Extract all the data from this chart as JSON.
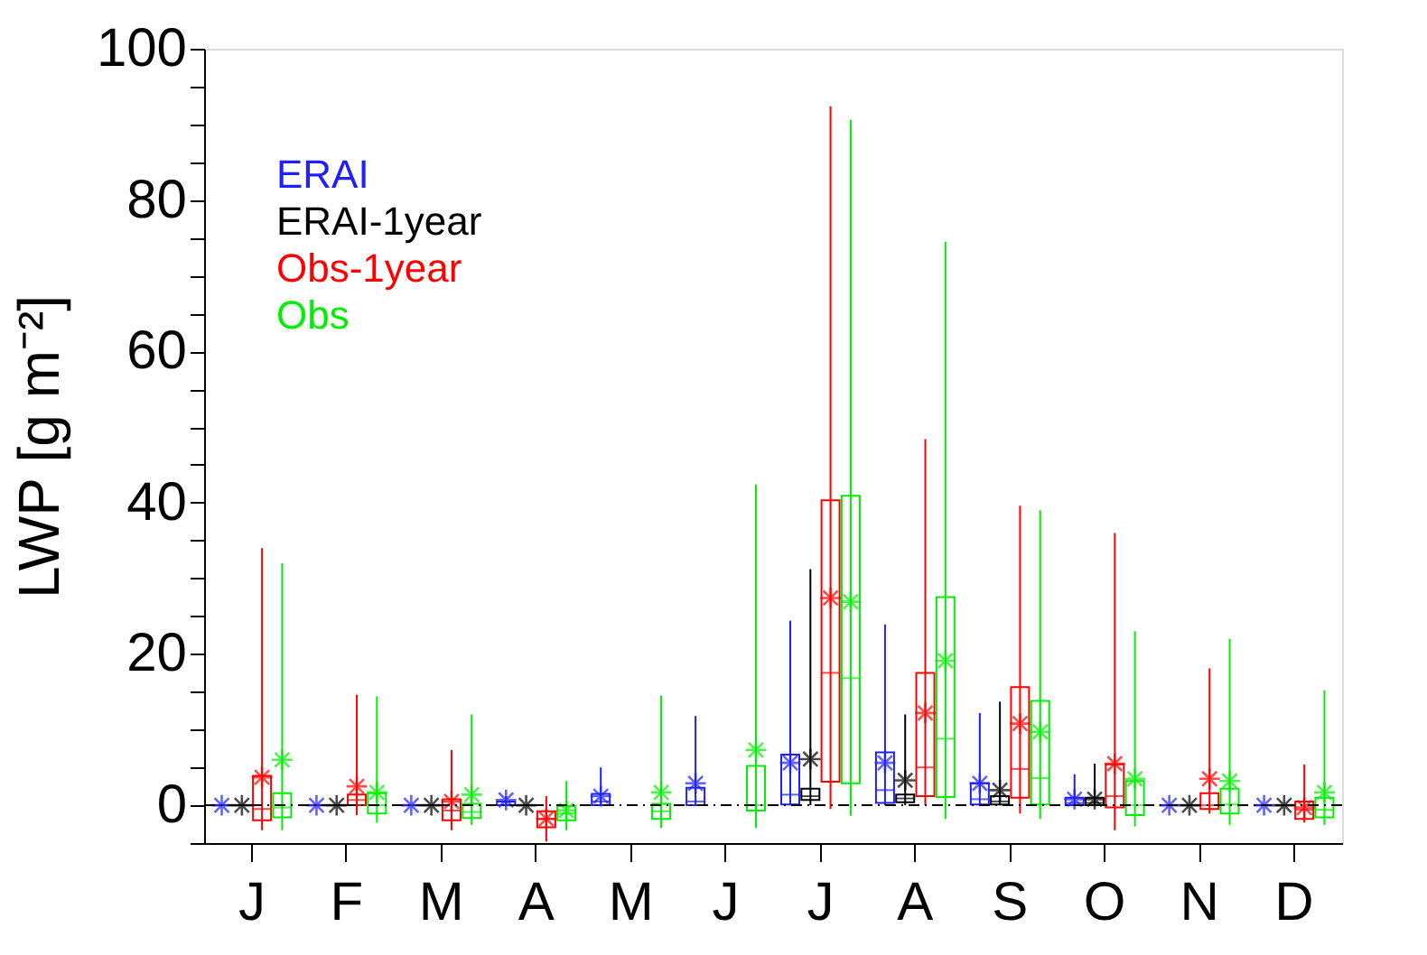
{
  "chart_data": {
    "type": "box",
    "categories": [
      "J",
      "F",
      "M",
      "A",
      "M",
      "J",
      "J",
      "A",
      "S",
      "O",
      "N",
      "D"
    ],
    "ylabel": "LWP [g m⁻²]",
    "ylim": [
      -5,
      100
    ],
    "yticks": [
      {
        "value": -5,
        "label": null
      },
      0,
      {
        "value": 5,
        "label": null
      },
      {
        "value": 10,
        "label": null
      },
      {
        "value": 15,
        "label": null
      },
      20,
      {
        "value": 25,
        "label": null
      },
      {
        "value": 30,
        "label": null
      },
      {
        "value": 35,
        "label": null
      },
      40,
      {
        "value": 45,
        "label": null
      },
      {
        "value": 50,
        "label": null
      },
      {
        "value": 55,
        "label": null
      },
      60,
      {
        "value": 65,
        "label": null
      },
      {
        "value": 70,
        "label": null
      },
      {
        "value": 75,
        "label": null
      },
      80,
      {
        "value": 85,
        "label": null
      },
      {
        "value": 90,
        "label": null
      },
      {
        "value": 95,
        "label": null
      },
      100
    ],
    "grid": false,
    "legend": "top left",
    "marker": "star",
    "ref_lines": [
      {
        "axis": "y",
        "value": 0,
        "color": "#000000",
        "line_style": "dashed"
      }
    ],
    "series": [
      {
        "name": "ERAI",
        "color": "#2020ff",
        "boxes": [
          {
            "low": 0,
            "q1": 0,
            "median": 0,
            "q3": 0,
            "high": 0,
            "mean": 0
          },
          {
            "low": 0,
            "q1": 0,
            "median": 0,
            "q3": 0,
            "high": 0,
            "mean": 0
          },
          {
            "low": 0,
            "q1": 0,
            "median": 0,
            "q3": 0,
            "high": 0,
            "mean": 0
          },
          {
            "low": 0,
            "q1": 0,
            "median": 0,
            "q3": 0.5,
            "high": 1.2,
            "mean": 0.7
          },
          {
            "low": 0,
            "q1": 0,
            "median": 0.5,
            "q3": 1.5,
            "high": 5.0,
            "mean": 1.2
          },
          {
            "low": 0,
            "q1": 0,
            "median": 0.5,
            "q3": 2.3,
            "high": 11.8,
            "mean": 2.9
          },
          {
            "low": 0,
            "q1": 0.1,
            "median": 1.4,
            "q3": 6.7,
            "high": 24.4,
            "mean": 5.6
          },
          {
            "low": 0,
            "q1": 0.3,
            "median": 2.0,
            "q3": 7.0,
            "high": 23.9,
            "mean": 5.6
          },
          {
            "low": 0,
            "q1": 0.1,
            "median": 0.8,
            "q3": 2.9,
            "high": 12.2,
            "mean": 2.9
          },
          {
            "low": 0,
            "q1": 0,
            "median": 0.3,
            "q3": 1.0,
            "high": 4.1,
            "mean": 0.8
          },
          {
            "low": 0,
            "q1": 0,
            "median": 0,
            "q3": 0,
            "high": 0,
            "mean": 0
          },
          {
            "low": 0,
            "q1": 0,
            "median": 0,
            "q3": 0,
            "high": 0,
            "mean": 0
          }
        ]
      },
      {
        "name": "ERAI-1year",
        "color": "#000000",
        "boxes": [
          {
            "low": 0,
            "q1": 0,
            "median": 0,
            "q3": 0,
            "high": 0,
            "mean": 0
          },
          {
            "low": 0,
            "q1": 0,
            "median": 0,
            "q3": 0,
            "high": 0,
            "mean": 0
          },
          {
            "low": 0,
            "q1": 0,
            "median": 0,
            "q3": 0,
            "high": 0,
            "mean": 0
          },
          {
            "low": 0,
            "q1": 0,
            "median": 0,
            "q3": 0,
            "high": 0,
            "mean": 0
          },
          null,
          null,
          {
            "low": 0,
            "q1": 0.7,
            "median": 1.2,
            "q3": 2.2,
            "high": 31.2,
            "mean": 6.1
          },
          {
            "low": 0,
            "q1": 0.4,
            "median": 0.9,
            "q3": 1.4,
            "high": 12.0,
            "mean": 3.3
          },
          {
            "low": 0,
            "q1": 0.1,
            "median": 0.5,
            "q3": 1.2,
            "high": 13.7,
            "mean": 2.0
          },
          {
            "low": 0,
            "q1": 0,
            "median": 0.3,
            "q3": 1.0,
            "high": 5.5,
            "mean": 0.8
          },
          {
            "low": 0,
            "q1": 0,
            "median": 0,
            "q3": 0,
            "high": 0,
            "mean": 0
          },
          {
            "low": 0,
            "q1": 0,
            "median": 0,
            "q3": 0,
            "high": 0,
            "mean": 0
          }
        ]
      },
      {
        "name": "Obs-1year",
        "color": "#ff0000",
        "boxes": [
          {
            "low": -3.3,
            "q1": -2.0,
            "median": -0.5,
            "q3": 3.9,
            "high": 34,
            "mean": 3.7
          },
          {
            "low": -1.3,
            "q1": 0,
            "median": 0.7,
            "q3": 1.4,
            "high": 14.6,
            "mean": 2.5
          },
          {
            "low": -3.3,
            "q1": -2.0,
            "median": -0.7,
            "q3": 0.8,
            "high": 7.3,
            "mean": 0.5
          },
          {
            "low": -4.8,
            "q1": -2.9,
            "median": -1.8,
            "q3": -0.8,
            "high": 1.2,
            "mean": -1.8
          },
          null,
          null,
          {
            "low": -0.5,
            "q1": 3.1,
            "median": 17.5,
            "q3": 40.3,
            "high": 92.4,
            "mean": 27.4
          },
          {
            "low": 0,
            "q1": 1.2,
            "median": 5.0,
            "q3": 17.5,
            "high": 48.4,
            "mean": 12.2
          },
          {
            "low": -1.1,
            "q1": 1.0,
            "median": 4.8,
            "q3": 15.6,
            "high": 39.6,
            "mean": 10.8
          },
          {
            "low": -3.3,
            "q1": -0.3,
            "median": 1.2,
            "q3": 5.4,
            "high": 36.0,
            "mean": 5.5
          },
          {
            "low": -1.1,
            "q1": -0.5,
            "median": 0,
            "q3": 1.6,
            "high": 18.1,
            "mean": 3.5
          },
          {
            "low": -2.3,
            "q1": -1.8,
            "median": -0.6,
            "q3": 0.5,
            "high": 5.4,
            "mean": -0.3
          }
        ]
      },
      {
        "name": "Obs",
        "color": "#00ee00",
        "boxes": [
          {
            "low": -3.3,
            "q1": -1.6,
            "median": -0.3,
            "q3": 1.6,
            "high": 32,
            "mean": 6.0
          },
          {
            "low": -2.3,
            "q1": -1.1,
            "median": 0,
            "q3": 1.6,
            "high": 14.4,
            "mean": 1.7
          },
          {
            "low": -2.6,
            "q1": -1.7,
            "median": -0.9,
            "q3": 0.2,
            "high": 12.0,
            "mean": 1.4
          },
          {
            "low": -3.3,
            "q1": -2.0,
            "median": -1.1,
            "q3": -0.1,
            "high": 3.2,
            "mean": -0.7
          },
          {
            "low": -3.0,
            "q1": -1.8,
            "median": -0.8,
            "q3": 0.2,
            "high": 14.5,
            "mean": 1.7
          },
          {
            "low": -3.0,
            "q1": -0.7,
            "median": 0,
            "q3": 5.2,
            "high": 42.4,
            "mean": 7.3
          },
          {
            "low": -1.4,
            "q1": 2.9,
            "median": 16.8,
            "q3": 40.9,
            "high": 90.6,
            "mean": 26.9
          },
          {
            "low": -1.8,
            "q1": 1.1,
            "median": 8.8,
            "q3": 27.5,
            "high": 74.5,
            "mean": 19.1
          },
          {
            "low": -1.8,
            "q1": 0.1,
            "median": 3.6,
            "q3": 13.8,
            "high": 39.0,
            "mean": 9.7
          },
          {
            "low": -2.8,
            "q1": -1.3,
            "median": 0,
            "q3": 3.2,
            "high": 23.0,
            "mean": 3.5
          },
          {
            "low": -2.6,
            "q1": -1.1,
            "median": 0.1,
            "q3": 2.2,
            "high": 22.0,
            "mean": 3.2
          },
          {
            "low": -2.6,
            "q1": -1.6,
            "median": -0.6,
            "q3": 1.0,
            "high": 15.2,
            "mean": 1.7
          }
        ]
      }
    ]
  }
}
